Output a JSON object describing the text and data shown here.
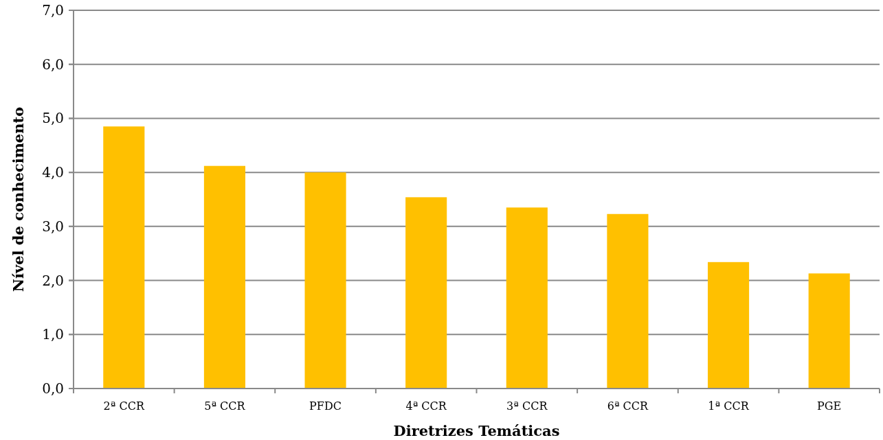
{
  "chart_data": {
    "type": "bar",
    "xlabel": "Diretrizes Temáticas",
    "ylabel": "Nível de conhecimento",
    "categories": [
      "2ª CCR",
      "5ª CCR",
      "PFDC",
      "4ª CCR",
      "3ª CCR",
      "6ª CCR",
      "1ª CCR",
      "PGE"
    ],
    "values": [
      4.85,
      4.12,
      4.0,
      3.54,
      3.35,
      3.23,
      2.34,
      2.13
    ],
    "color": "#ffc000",
    "ylim": [
      0,
      7
    ],
    "yticks": [
      {
        "value": 0,
        "label": "0,0"
      },
      {
        "value": 1,
        "label": "1,0"
      },
      {
        "value": 2,
        "label": "2,0"
      },
      {
        "value": 3,
        "label": "3,0"
      },
      {
        "value": 4,
        "label": "4,0"
      },
      {
        "value": 5,
        "label": "5,0"
      },
      {
        "value": 6,
        "label": "6,0"
      },
      {
        "value": 7,
        "label": "7,0"
      }
    ],
    "grid": "y"
  }
}
